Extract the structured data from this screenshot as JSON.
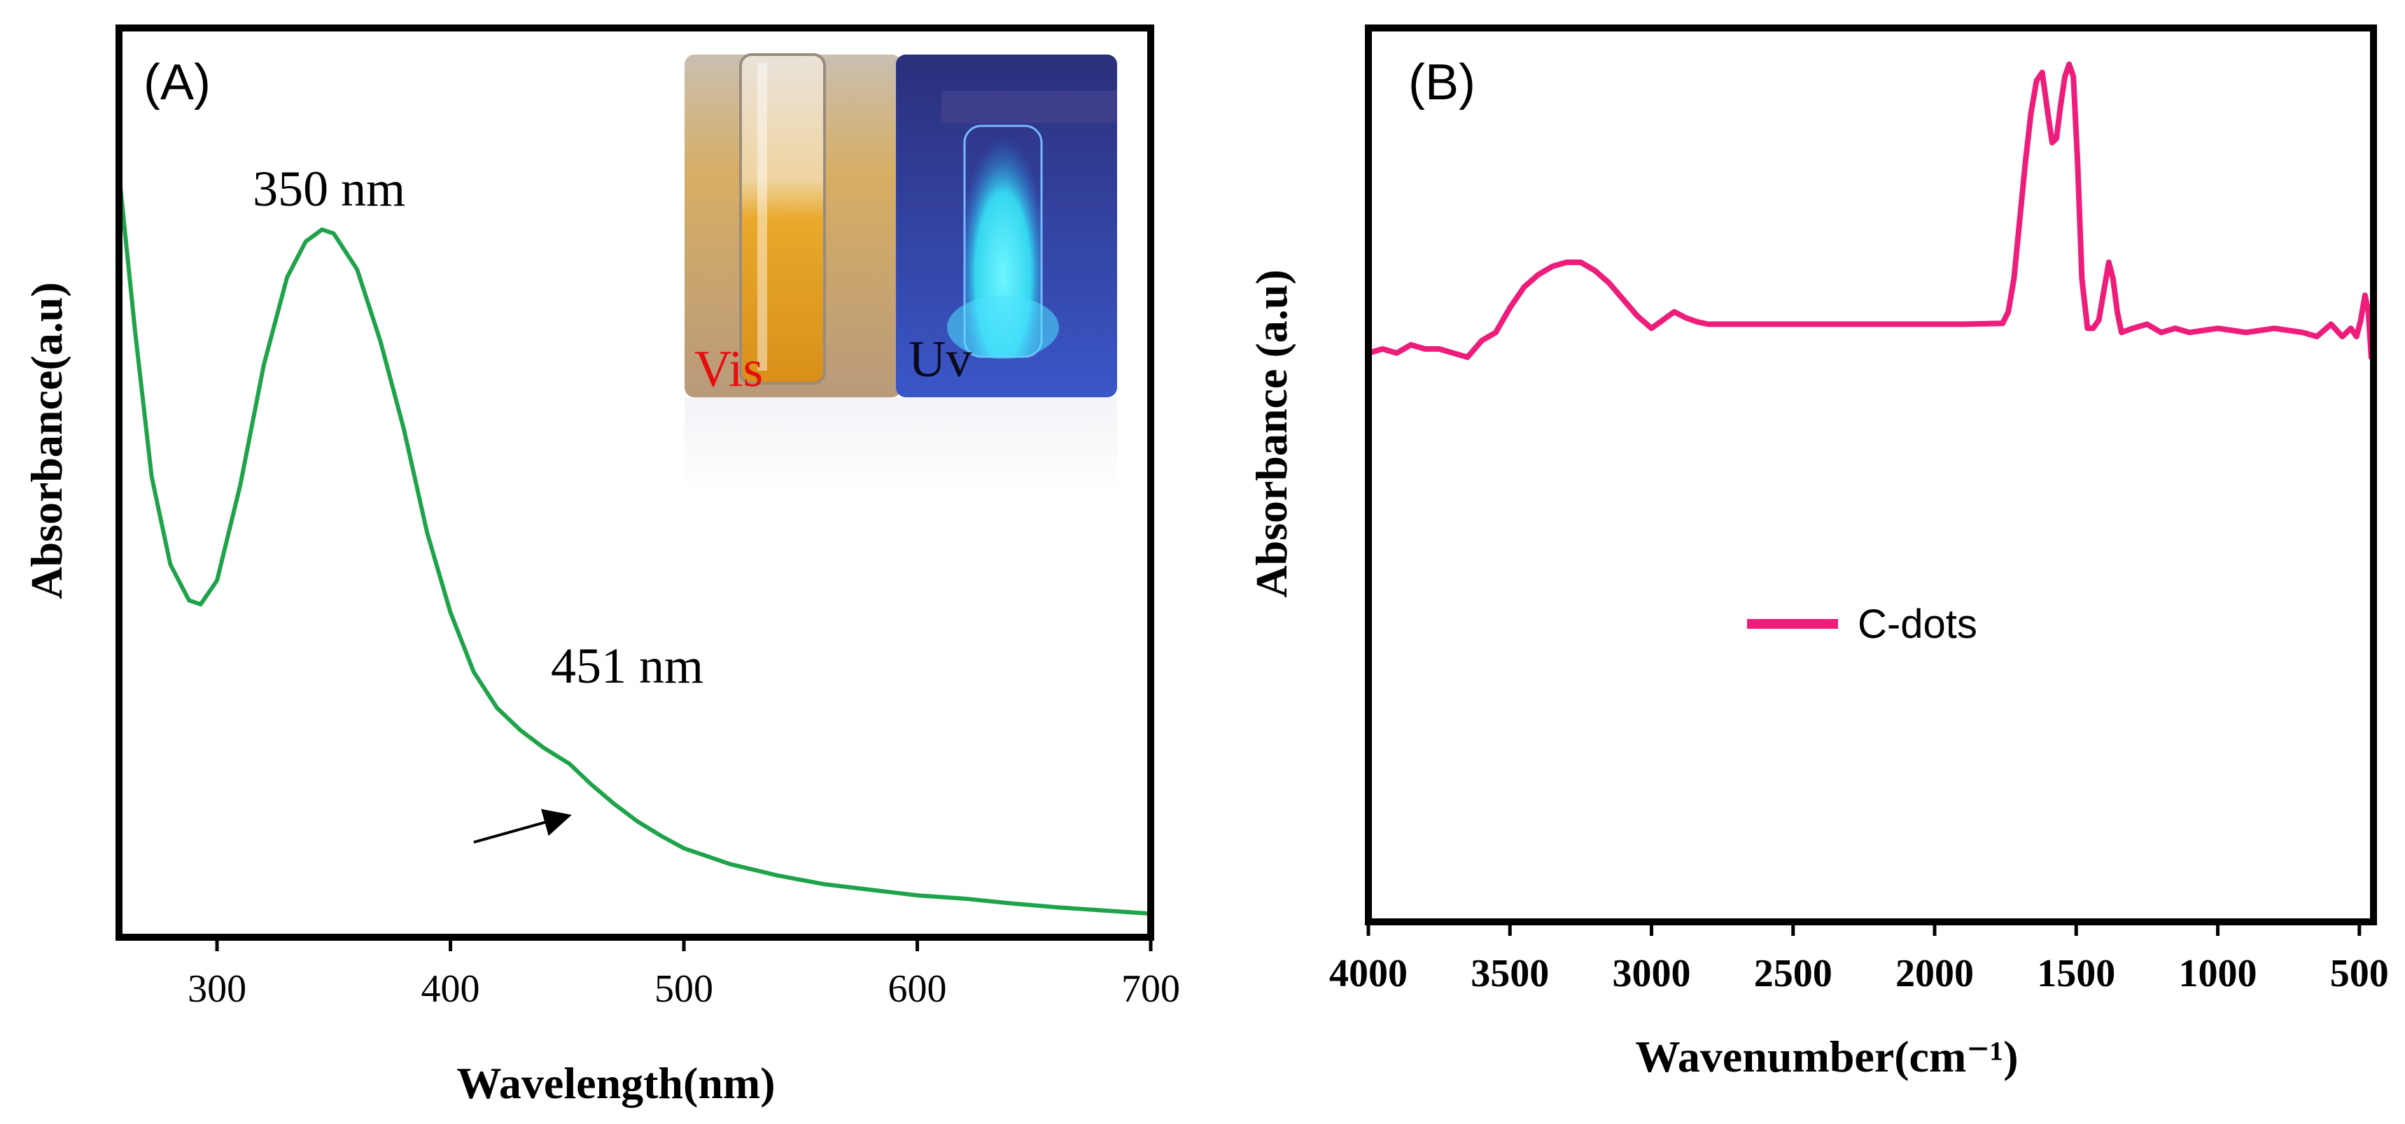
{
  "colors": {
    "series_a": "#1fa34a",
    "series_b": "#ee1c7a",
    "frame": "#000000",
    "vis_label": "#e41010",
    "uv_label": "#0a0a1a"
  },
  "chart_data": [
    {
      "type": "line",
      "panel_label": "(A)",
      "xlabel": "Wavelength(nm)",
      "ylabel": "Absorbance(a.u)",
      "xlim": [
        258,
        700
      ],
      "ylim": [
        0,
        1
      ],
      "x_ticks": [
        300,
        400,
        500,
        600,
        700
      ],
      "x_tick_labels": [
        "300",
        "400",
        "500",
        "600",
        "700"
      ],
      "annotations": [
        {
          "text": "350 nm",
          "x": 348,
          "y": 0.865
        },
        {
          "text": "451 nm",
          "x": 452,
          "y": 0.242
        }
      ],
      "inset_labels": {
        "vis": "Vis",
        "uv": "Uv"
      },
      "series": [
        {
          "x": [
            258,
            265,
            272,
            280,
            288,
            293,
            300,
            310,
            320,
            330,
            338,
            345,
            350,
            360,
            370,
            380,
            390,
            400,
            410,
            420,
            430,
            440,
            451,
            460,
            470,
            480,
            490,
            500,
            520,
            540,
            560,
            580,
            600,
            620,
            640,
            660,
            680,
            700
          ],
          "y": [
            0.94,
            0.74,
            0.56,
            0.45,
            0.405,
            0.4,
            0.43,
            0.55,
            0.7,
            0.81,
            0.855,
            0.87,
            0.865,
            0.82,
            0.73,
            0.62,
            0.49,
            0.39,
            0.315,
            0.27,
            0.242,
            0.22,
            0.2,
            0.175,
            0.15,
            0.128,
            0.11,
            0.094,
            0.074,
            0.06,
            0.049,
            0.042,
            0.035,
            0.031,
            0.025,
            0.02,
            0.016,
            0.012
          ]
        }
      ]
    },
    {
      "type": "line",
      "panel_label": "(B)",
      "xlabel": "Wavenumber(cm⁻¹)",
      "ylabel": "Absorbance (a.u)",
      "xlim": [
        4000,
        450
      ],
      "ylim": [
        0,
        1
      ],
      "x_ticks": [
        4000,
        3500,
        3000,
        2500,
        2000,
        1500,
        1000,
        500
      ],
      "x_tick_labels": [
        "4000",
        "3500",
        "3000",
        "2500",
        "2000",
        "1500",
        "1000",
        "500"
      ],
      "legend": {
        "position": "center",
        "entries": [
          "C-dots"
        ]
      },
      "series": [
        {
          "name": "C-dots",
          "x": [
            4000,
            3950,
            3900,
            3850,
            3800,
            3750,
            3700,
            3650,
            3600,
            3550,
            3500,
            3450,
            3400,
            3350,
            3300,
            3250,
            3200,
            3150,
            3100,
            3050,
            3000,
            2960,
            2920,
            2880,
            2840,
            2800,
            2700,
            2500,
            2300,
            2100,
            1900,
            1760,
            1740,
            1720,
            1700,
            1680,
            1660,
            1640,
            1620,
            1600,
            1585,
            1570,
            1555,
            1540,
            1525,
            1510,
            1495,
            1480,
            1460,
            1440,
            1420,
            1400,
            1385,
            1370,
            1355,
            1340,
            1300,
            1250,
            1200,
            1150,
            1100,
            1000,
            900,
            800,
            700,
            650,
            600,
            560,
            530,
            510,
            495,
            480,
            468,
            458
          ],
          "y": [
            0.64,
            0.645,
            0.64,
            0.65,
            0.645,
            0.645,
            0.64,
            0.635,
            0.655,
            0.665,
            0.695,
            0.72,
            0.735,
            0.745,
            0.75,
            0.75,
            0.74,
            0.725,
            0.705,
            0.685,
            0.67,
            0.68,
            0.69,
            0.683,
            0.678,
            0.675,
            0.675,
            0.675,
            0.675,
            0.675,
            0.675,
            0.676,
            0.69,
            0.73,
            0.8,
            0.87,
            0.93,
            0.97,
            0.98,
            0.93,
            0.895,
            0.9,
            0.94,
            0.975,
            0.99,
            0.975,
            0.87,
            0.73,
            0.67,
            0.67,
            0.68,
            0.72,
            0.75,
            0.73,
            0.69,
            0.665,
            0.67,
            0.675,
            0.665,
            0.67,
            0.665,
            0.67,
            0.665,
            0.67,
            0.665,
            0.66,
            0.675,
            0.66,
            0.67,
            0.66,
            0.68,
            0.71,
            0.69,
            0.635
          ]
        }
      ]
    }
  ]
}
